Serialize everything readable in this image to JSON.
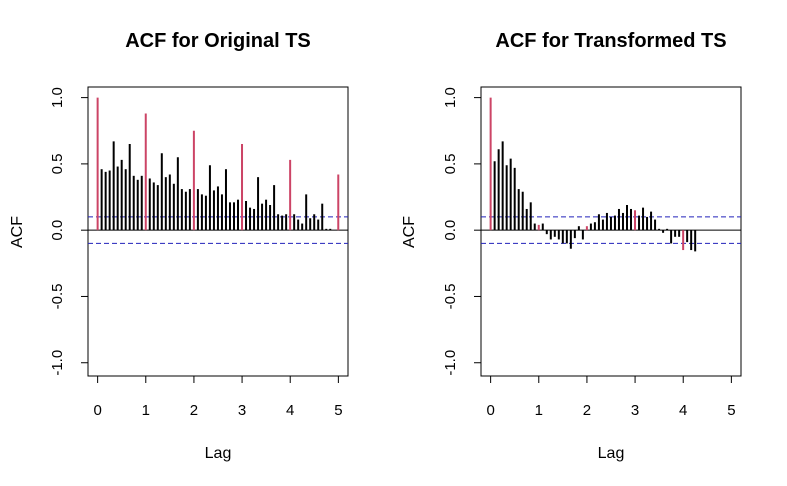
{
  "chart_data": [
    {
      "type": "bar",
      "title": "ACF for Original TS",
      "xlabel": "Lag",
      "ylabel": "ACF",
      "xlim": [
        -0.2,
        5.2
      ],
      "ylim": [
        -1.1,
        1.08
      ],
      "xticks": [
        0,
        1,
        2,
        3,
        4,
        5
      ],
      "xtick_labels": [
        "0",
        "1",
        "2",
        "3",
        "4",
        "5"
      ],
      "yticks": [
        -1.0,
        -0.5,
        0.0,
        0.5,
        1.0
      ],
      "ytick_labels": [
        "-1.0",
        "-0.5",
        "0.0",
        "0.5",
        "1.0"
      ],
      "lag_step": 0.0833,
      "ci": 0.1,
      "bar_color": "#000000",
      "seasonal_color": "#cc4466",
      "ci_color": "#2222bb",
      "values": [
        1.0,
        0.46,
        0.44,
        0.45,
        0.67,
        0.48,
        0.53,
        0.46,
        0.65,
        0.41,
        0.38,
        0.41,
        0.88,
        0.39,
        0.36,
        0.34,
        0.58,
        0.4,
        0.42,
        0.35,
        0.55,
        0.31,
        0.29,
        0.31,
        0.75,
        0.31,
        0.27,
        0.26,
        0.49,
        0.3,
        0.33,
        0.27,
        0.46,
        0.21,
        0.21,
        0.23,
        0.65,
        0.22,
        0.17,
        0.16,
        0.4,
        0.2,
        0.23,
        0.19,
        0.34,
        0.12,
        0.11,
        0.12,
        0.53,
        0.12,
        0.08,
        0.05,
        0.27,
        0.09,
        0.12,
        0.08,
        0.2,
        0.01,
        0.01,
        0.0,
        0.42
      ]
    },
    {
      "type": "bar",
      "title": "ACF for Transformed TS",
      "xlabel": "Lag",
      "ylabel": "ACF",
      "xlim": [
        -0.2,
        5.2
      ],
      "ylim": [
        -1.1,
        1.08
      ],
      "xticks": [
        0,
        1,
        2,
        3,
        4,
        5
      ],
      "xtick_labels": [
        "0",
        "1",
        "2",
        "3",
        "4",
        "5"
      ],
      "yticks": [
        -1.0,
        -0.5,
        0.0,
        0.5,
        1.0
      ],
      "ytick_labels": [
        "-1.0",
        "-0.5",
        "0.0",
        "0.5",
        "1.0"
      ],
      "lag_step": 0.0833,
      "ci": 0.1,
      "bar_color": "#000000",
      "seasonal_color": "#cc4466",
      "ci_color": "#2222bb",
      "values": [
        1.0,
        0.52,
        0.61,
        0.67,
        0.49,
        0.54,
        0.47,
        0.31,
        0.29,
        0.16,
        0.21,
        0.05,
        0.04,
        0.05,
        -0.03,
        -0.07,
        -0.05,
        -0.07,
        -0.1,
        -0.1,
        -0.14,
        -0.06,
        0.03,
        -0.07,
        0.03,
        0.05,
        0.06,
        0.12,
        0.08,
        0.13,
        0.1,
        0.11,
        0.16,
        0.13,
        0.19,
        0.16,
        0.15,
        0.11,
        0.17,
        0.1,
        0.14,
        0.08,
        0.01,
        -0.02,
        0.01,
        -0.1,
        -0.05,
        -0.05,
        -0.15,
        -0.09,
        -0.15,
        -0.16
      ]
    }
  ]
}
